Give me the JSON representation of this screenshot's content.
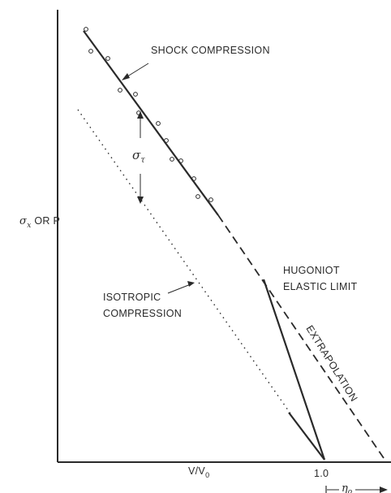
{
  "diagram": {
    "y_axis_label": {
      "main": "σ",
      "sub": "x",
      "rest": " OR P"
    },
    "x_axis_label": {
      "main": "V/V",
      "sub": "0"
    },
    "x_tick_label": "1.0",
    "eta_label": {
      "main": "η",
      "sub": "o"
    },
    "sigma_tau_label": {
      "main": "σ",
      "sub": "τ"
    },
    "annotations": {
      "shock_compression": "SHOCK COMPRESSION",
      "hugoniot_line1": "HUGONIOT",
      "hugoniot_line2": "ELASTIC LIMIT",
      "isotropic_line1": "ISOTROPIC",
      "isotropic_line2": "COMPRESSION",
      "extrapolation": "EXTRAPOLATION"
    },
    "colors": {
      "ink": "#2a2a2a",
      "background": "#ffffff"
    }
  }
}
